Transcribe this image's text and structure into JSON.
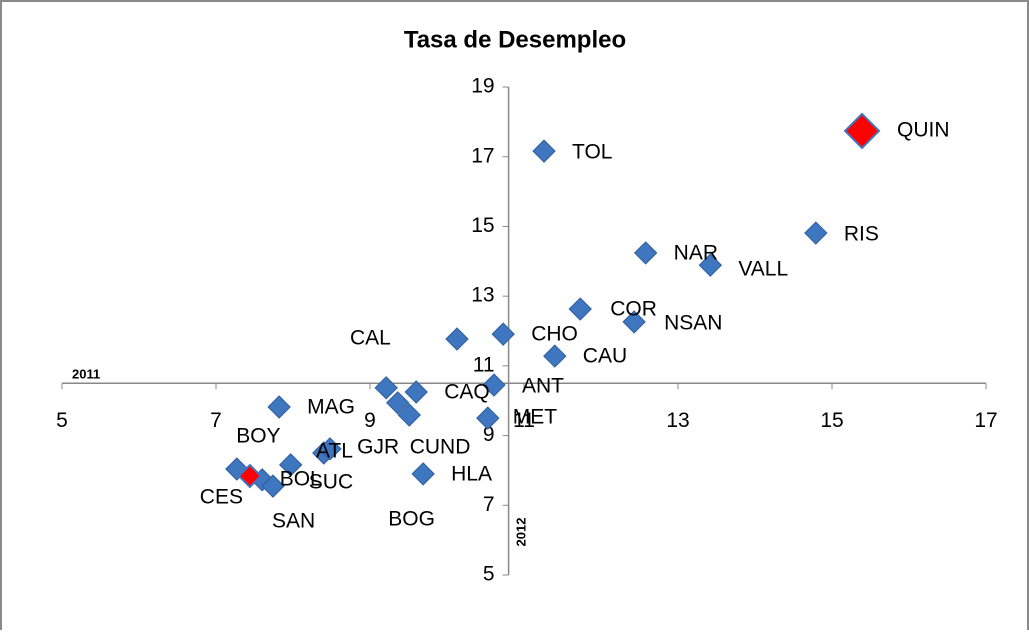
{
  "chart_data": {
    "type": "scatter",
    "title": "Tasa de Desempleo",
    "x_label": "2011",
    "y_label": "2012",
    "xlim": [
      5,
      17
    ],
    "ylim": [
      5,
      19
    ],
    "xticks": [
      5,
      7,
      9,
      11,
      13,
      15,
      17
    ],
    "yticks": [
      5,
      7,
      9,
      11,
      13,
      15,
      17,
      19
    ],
    "x_axis_crosses_at": 10.5,
    "y_axis_crosses_at": 10.8,
    "color": "#3f76c0",
    "highlight_color": "#ff0000",
    "series": [
      {
        "names": [
          "QUIN",
          "TOL",
          "RIS",
          "NAR",
          "VALL",
          "COR",
          "NSAN",
          "CHO",
          "CAL",
          "CAU",
          "ANT",
          "MET",
          "CAQ",
          "GJR",
          "CUND",
          "BOG",
          "MAG",
          "SUC",
          "ATL",
          "HLA",
          "BOY",
          "BOL",
          "SAN",
          "CES",
          null
        ],
        "x": [
          15.39,
          11.26,
          14.79,
          12.58,
          13.42,
          11.73,
          12.43,
          10.73,
          10.13,
          11.4,
          10.61,
          10.53,
          9.6,
          9.21,
          9.36,
          9.51,
          7.82,
          8.4,
          8.48,
          9.69,
          7.6,
          7.97,
          7.74,
          7.27,
          7.44
        ],
        "values": [
          17.74,
          17.16,
          14.81,
          14.24,
          13.89,
          12.63,
          12.26,
          11.91,
          11.77,
          11.28,
          10.45,
          9.5,
          10.25,
          10.37,
          9.94,
          9.59,
          9.82,
          8.5,
          8.62,
          7.9,
          7.73,
          8.16,
          7.55,
          8.04,
          7.84
        ],
        "highlighted": [
          true,
          false,
          false,
          false,
          false,
          false,
          false,
          false,
          false,
          false,
          false,
          false,
          false,
          false,
          false,
          false,
          false,
          false,
          false,
          false,
          false,
          false,
          false,
          false,
          true
        ]
      }
    ]
  }
}
